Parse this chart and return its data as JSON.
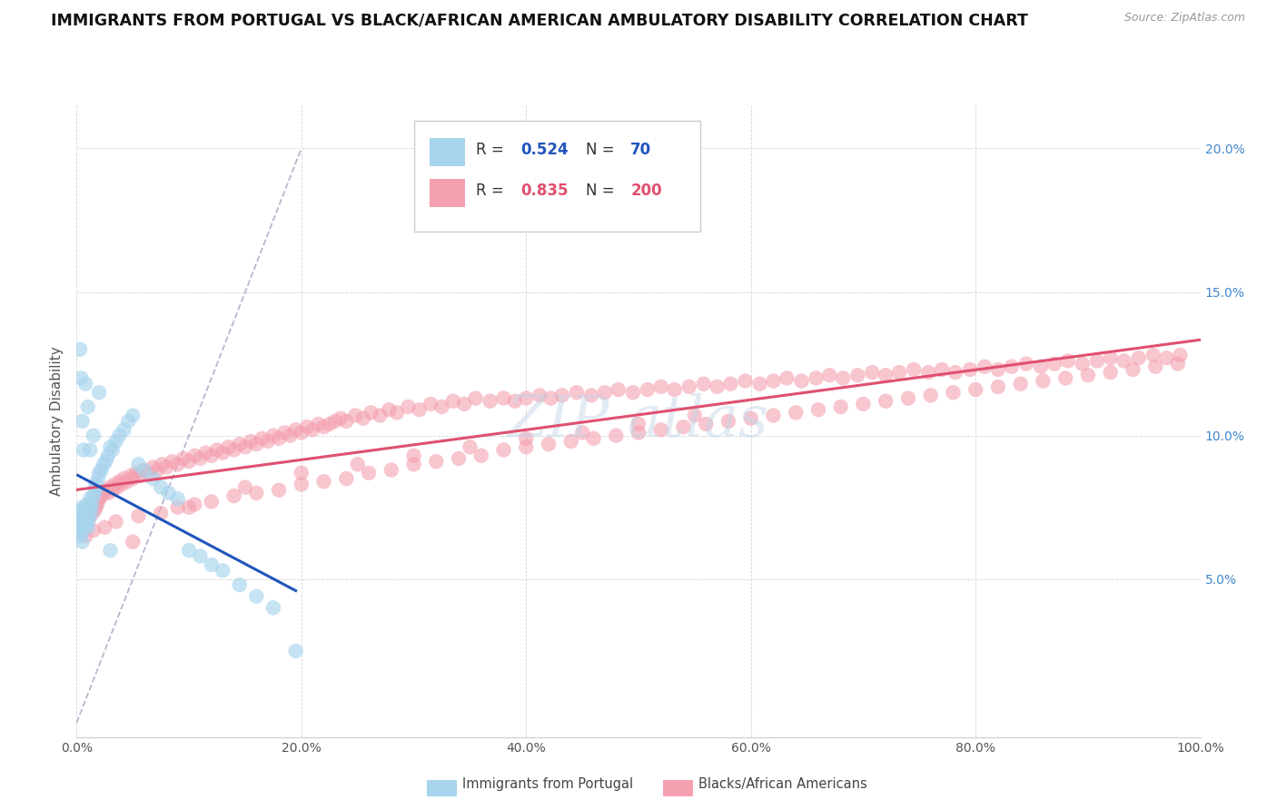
{
  "title": "IMMIGRANTS FROM PORTUGAL VS BLACK/AFRICAN AMERICAN AMBULATORY DISABILITY CORRELATION CHART",
  "source": "Source: ZipAtlas.com",
  "ylabel": "Ambulatory Disability",
  "legend_label1": "Immigrants from Portugal",
  "legend_label2": "Blacks/African Americans",
  "R1": "0.524",
  "N1": "70",
  "R2": "0.835",
  "N2": "200",
  "ytick_vals": [
    0.05,
    0.1,
    0.15,
    0.2
  ],
  "xtick_vals": [
    0.0,
    0.2,
    0.4,
    0.6,
    0.8,
    1.0
  ],
  "color_blue": "#A8D4ED",
  "color_pink": "#F4A0B0",
  "color_line_blue": "#2255BB",
  "color_line_pink": "#E05070",
  "color_dashed": "#9999BB",
  "xlim": [
    0.0,
    1.0
  ],
  "ylim": [
    -0.005,
    0.215
  ],
  "blue_x": [
    0.001,
    0.002,
    0.002,
    0.003,
    0.003,
    0.003,
    0.004,
    0.004,
    0.004,
    0.005,
    0.005,
    0.005,
    0.006,
    0.006,
    0.006,
    0.007,
    0.007,
    0.008,
    0.008,
    0.009,
    0.009,
    0.01,
    0.01,
    0.011,
    0.011,
    0.012,
    0.012,
    0.013,
    0.014,
    0.015,
    0.016,
    0.017,
    0.018,
    0.019,
    0.02,
    0.022,
    0.024,
    0.026,
    0.028,
    0.03,
    0.032,
    0.035,
    0.038,
    0.042,
    0.046,
    0.05,
    0.055,
    0.06,
    0.068,
    0.075,
    0.082,
    0.09,
    0.1,
    0.11,
    0.12,
    0.13,
    0.145,
    0.16,
    0.175,
    0.195,
    0.003,
    0.004,
    0.005,
    0.006,
    0.008,
    0.01,
    0.012,
    0.015,
    0.02,
    0.03
  ],
  "blue_y": [
    0.067,
    0.065,
    0.072,
    0.07,
    0.068,
    0.074,
    0.066,
    0.071,
    0.069,
    0.073,
    0.063,
    0.075,
    0.07,
    0.068,
    0.072,
    0.071,
    0.074,
    0.069,
    0.073,
    0.07,
    0.076,
    0.068,
    0.072,
    0.074,
    0.071,
    0.075,
    0.078,
    0.073,
    0.076,
    0.079,
    0.08,
    0.083,
    0.082,
    0.085,
    0.087,
    0.088,
    0.09,
    0.091,
    0.093,
    0.096,
    0.095,
    0.098,
    0.1,
    0.102,
    0.105,
    0.107,
    0.09,
    0.088,
    0.085,
    0.082,
    0.08,
    0.078,
    0.06,
    0.058,
    0.055,
    0.053,
    0.048,
    0.044,
    0.04,
    0.025,
    0.13,
    0.12,
    0.105,
    0.095,
    0.118,
    0.11,
    0.095,
    0.1,
    0.115,
    0.06
  ],
  "pink_x": [
    0.002,
    0.003,
    0.004,
    0.005,
    0.006,
    0.007,
    0.008,
    0.009,
    0.01,
    0.011,
    0.012,
    0.013,
    0.014,
    0.015,
    0.016,
    0.017,
    0.018,
    0.019,
    0.02,
    0.022,
    0.024,
    0.026,
    0.028,
    0.03,
    0.032,
    0.034,
    0.036,
    0.038,
    0.04,
    0.042,
    0.045,
    0.048,
    0.05,
    0.053,
    0.056,
    0.06,
    0.064,
    0.068,
    0.072,
    0.076,
    0.08,
    0.085,
    0.09,
    0.095,
    0.1,
    0.105,
    0.11,
    0.115,
    0.12,
    0.125,
    0.13,
    0.135,
    0.14,
    0.145,
    0.15,
    0.155,
    0.16,
    0.165,
    0.17,
    0.175,
    0.18,
    0.185,
    0.19,
    0.195,
    0.2,
    0.205,
    0.21,
    0.215,
    0.22,
    0.225,
    0.23,
    0.235,
    0.24,
    0.248,
    0.255,
    0.262,
    0.27,
    0.278,
    0.285,
    0.295,
    0.305,
    0.315,
    0.325,
    0.335,
    0.345,
    0.355,
    0.368,
    0.38,
    0.39,
    0.4,
    0.412,
    0.422,
    0.432,
    0.445,
    0.458,
    0.47,
    0.482,
    0.495,
    0.508,
    0.52,
    0.532,
    0.545,
    0.558,
    0.57,
    0.582,
    0.595,
    0.608,
    0.62,
    0.632,
    0.645,
    0.658,
    0.67,
    0.682,
    0.695,
    0.708,
    0.72,
    0.732,
    0.745,
    0.758,
    0.77,
    0.782,
    0.795,
    0.808,
    0.82,
    0.832,
    0.845,
    0.858,
    0.87,
    0.882,
    0.895,
    0.908,
    0.92,
    0.932,
    0.945,
    0.958,
    0.97,
    0.982,
    0.008,
    0.015,
    0.025,
    0.035,
    0.055,
    0.075,
    0.09,
    0.105,
    0.12,
    0.14,
    0.16,
    0.18,
    0.2,
    0.22,
    0.24,
    0.26,
    0.28,
    0.3,
    0.32,
    0.34,
    0.36,
    0.38,
    0.4,
    0.42,
    0.44,
    0.46,
    0.48,
    0.5,
    0.52,
    0.54,
    0.56,
    0.58,
    0.6,
    0.62,
    0.64,
    0.66,
    0.68,
    0.7,
    0.72,
    0.74,
    0.76,
    0.78,
    0.8,
    0.82,
    0.84,
    0.86,
    0.88,
    0.9,
    0.92,
    0.94,
    0.96,
    0.98,
    0.05,
    0.1,
    0.15,
    0.2,
    0.25,
    0.3,
    0.35,
    0.4,
    0.45,
    0.5,
    0.55
  ],
  "pink_y": [
    0.068,
    0.07,
    0.069,
    0.071,
    0.068,
    0.072,
    0.07,
    0.073,
    0.071,
    0.074,
    0.072,
    0.075,
    0.073,
    0.076,
    0.074,
    0.075,
    0.076,
    0.077,
    0.078,
    0.079,
    0.08,
    0.081,
    0.08,
    0.082,
    0.081,
    0.083,
    0.082,
    0.084,
    0.083,
    0.085,
    0.084,
    0.086,
    0.085,
    0.087,
    0.086,
    0.088,
    0.087,
    0.089,
    0.088,
    0.09,
    0.089,
    0.091,
    0.09,
    0.092,
    0.091,
    0.093,
    0.092,
    0.094,
    0.093,
    0.095,
    0.094,
    0.096,
    0.095,
    0.097,
    0.096,
    0.098,
    0.097,
    0.099,
    0.098,
    0.1,
    0.099,
    0.101,
    0.1,
    0.102,
    0.101,
    0.103,
    0.102,
    0.104,
    0.103,
    0.104,
    0.105,
    0.106,
    0.105,
    0.107,
    0.106,
    0.108,
    0.107,
    0.109,
    0.108,
    0.11,
    0.109,
    0.111,
    0.11,
    0.112,
    0.111,
    0.113,
    0.112,
    0.113,
    0.112,
    0.113,
    0.114,
    0.113,
    0.114,
    0.115,
    0.114,
    0.115,
    0.116,
    0.115,
    0.116,
    0.117,
    0.116,
    0.117,
    0.118,
    0.117,
    0.118,
    0.119,
    0.118,
    0.119,
    0.12,
    0.119,
    0.12,
    0.121,
    0.12,
    0.121,
    0.122,
    0.121,
    0.122,
    0.123,
    0.122,
    0.123,
    0.122,
    0.123,
    0.124,
    0.123,
    0.124,
    0.125,
    0.124,
    0.125,
    0.126,
    0.125,
    0.126,
    0.127,
    0.126,
    0.127,
    0.128,
    0.127,
    0.128,
    0.065,
    0.067,
    0.068,
    0.07,
    0.072,
    0.073,
    0.075,
    0.076,
    0.077,
    0.079,
    0.08,
    0.081,
    0.083,
    0.084,
    0.085,
    0.087,
    0.088,
    0.09,
    0.091,
    0.092,
    0.093,
    0.095,
    0.096,
    0.097,
    0.098,
    0.099,
    0.1,
    0.101,
    0.102,
    0.103,
    0.104,
    0.105,
    0.106,
    0.107,
    0.108,
    0.109,
    0.11,
    0.111,
    0.112,
    0.113,
    0.114,
    0.115,
    0.116,
    0.117,
    0.118,
    0.119,
    0.12,
    0.121,
    0.122,
    0.123,
    0.124,
    0.125,
    0.063,
    0.075,
    0.082,
    0.087,
    0.09,
    0.093,
    0.096,
    0.099,
    0.101,
    0.104,
    0.107
  ]
}
